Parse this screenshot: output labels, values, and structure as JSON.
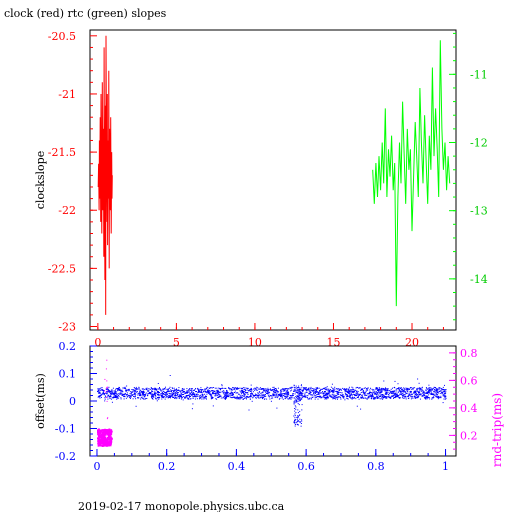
{
  "colors": {
    "clock": "#ff0000",
    "rtc": "#00ff00",
    "rtc_text": "#00cc00",
    "offset": "#0000ff",
    "roundtrip": "#ff00ff",
    "frame": "#000000"
  },
  "footer": "2019-02-17 monopole.physics.ubc.ca",
  "chart_data": [
    {
      "type": "line",
      "title": "clock (red) rtc (green) slopes",
      "ylabel_left": "clockslope",
      "xlim": [
        -0.5,
        22.8
      ],
      "ylim_left": [
        -23.03,
        -20.45
      ],
      "ylim_right": [
        -14.75,
        -10.35
      ],
      "xticks": [
        "0",
        "5",
        "10",
        "15",
        "20"
      ],
      "yticks_left": [
        "-20.5",
        "-21",
        "-21.5",
        "-22",
        "-22.5",
        "-23"
      ],
      "yticks_right": [
        "-11",
        "-12",
        "-13",
        "-14"
      ],
      "grid": false,
      "series": [
        {
          "name": "clock",
          "axis": "left",
          "x": [
            0.02,
            0.05,
            0.08,
            0.1,
            0.12,
            0.15,
            0.18,
            0.2,
            0.22,
            0.25,
            0.28,
            0.3,
            0.32,
            0.35,
            0.38,
            0.4,
            0.42,
            0.45,
            0.48,
            0.5,
            0.52,
            0.55,
            0.58,
            0.6,
            0.62,
            0.65,
            0.68,
            0.7,
            0.72,
            0.75,
            0.78,
            0.8,
            0.82,
            0.85,
            0.88,
            0.9,
            0.92
          ],
          "y": [
            -21.8,
            -21.6,
            -22.0,
            -21.4,
            -21.9,
            -21.2,
            -22.1,
            -21.0,
            -21.7,
            -22.2,
            -20.9,
            -21.5,
            -22.0,
            -21.3,
            -22.4,
            -20.6,
            -21.8,
            -22.6,
            -21.1,
            -22.9,
            -20.5,
            -21.6,
            -22.1,
            -21.0,
            -22.3,
            -21.4,
            -21.9,
            -20.8,
            -22.5,
            -21.3,
            -21.8,
            -22.0,
            -21.2,
            -22.2,
            -21.5,
            -21.9,
            -21.7
          ]
        },
        {
          "name": "rtc",
          "axis": "right",
          "x": [
            17.5,
            17.6,
            17.7,
            17.8,
            17.9,
            18.0,
            18.1,
            18.2,
            18.3,
            18.4,
            18.5,
            18.6,
            18.7,
            18.8,
            18.9,
            19.0,
            19.1,
            19.2,
            19.3,
            19.4,
            19.5,
            19.6,
            19.7,
            19.8,
            19.9,
            20.0,
            20.1,
            20.2,
            20.3,
            20.4,
            20.5,
            20.6,
            20.7,
            20.8,
            20.9,
            21.0,
            21.1,
            21.2,
            21.3,
            21.4,
            21.5,
            21.6,
            21.7,
            21.8,
            21.9,
            22.0,
            22.1,
            22.2,
            22.3,
            22.4
          ],
          "y": [
            -12.4,
            -12.9,
            -12.3,
            -12.8,
            -12.2,
            -12.7,
            -12.0,
            -12.6,
            -11.5,
            -12.8,
            -12.1,
            -12.5,
            -11.9,
            -12.7,
            -12.3,
            -14.4,
            -12.8,
            -12.0,
            -12.6,
            -11.4,
            -12.2,
            -12.9,
            -11.8,
            -12.4,
            -12.1,
            -13.3,
            -12.5,
            -11.7,
            -12.2,
            -12.8,
            -11.2,
            -12.0,
            -12.6,
            -11.6,
            -12.3,
            -12.9,
            -11.9,
            -12.4,
            -10.9,
            -12.2,
            -11.5,
            -12.1,
            -12.8,
            -10.5,
            -11.8,
            -12.4,
            -12.0,
            -12.7,
            -12.2,
            -12.6
          ]
        }
      ]
    },
    {
      "type": "scatter",
      "ylabel_left": "offset(ms)",
      "ylabel_right": "rnd-trip(ms)",
      "xlim": [
        -0.02,
        1.03
      ],
      "ylim_left": [
        -0.2,
        0.2
      ],
      "ylim_right": [
        0.05,
        0.85
      ],
      "xticks": [
        "0",
        "0.2",
        "0.4",
        "0.6",
        "0.8",
        "1"
      ],
      "yticks_left": [
        "0.2",
        "0.1",
        "0",
        "-0.1",
        "-0.2"
      ],
      "yticks_right": [
        "0.8",
        "0.6",
        "0.4",
        "0.2"
      ],
      "grid": false,
      "series": [
        {
          "name": "offset",
          "axis": "left",
          "band_center": 0.03,
          "band_halfwidth": 0.022,
          "x_range": [
            0.0,
            1.0
          ],
          "dip_x": 0.575,
          "dip_min": -0.09
        },
        {
          "name": "round-trip",
          "axis": "right",
          "x_range": [
            0.0,
            0.04
          ],
          "y_range": [
            0.13,
            0.25
          ]
        }
      ]
    }
  ]
}
